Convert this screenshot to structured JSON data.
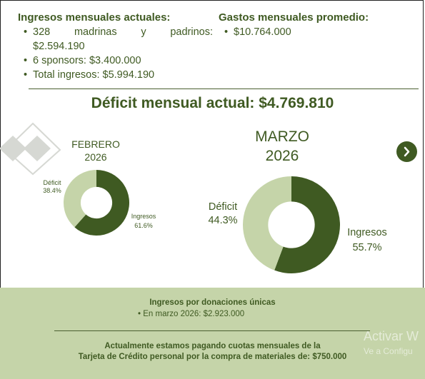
{
  "ingresos": {
    "title": "Ingresos mensuales actuales:",
    "item1_a": "328",
    "item1_b": "madrinas",
    "item1_c": "y",
    "item1_d": "padrinos:",
    "item1_e": "$2.594.190",
    "item2": "6 sponsors: $3.400.000",
    "item3": "Total ingresos: $5.994.190"
  },
  "gastos": {
    "title": "Gastos mensuales promedio:",
    "item1": "$10.764.000"
  },
  "deficit_title": "Déficit mensual actual: $4.769.810",
  "colors": {
    "dark_green": "#3f5a22",
    "light_green": "#c5d4a9",
    "gray_diamond": "#d6d8d3"
  },
  "chart_data": [
    {
      "type": "pie",
      "title_line1": "FEBRERO",
      "title_line2": "2026",
      "slices": [
        {
          "label": "Ingresos",
          "value": 61.6,
          "display": "61.6%",
          "color": "#3f5a22"
        },
        {
          "label": "Déficit",
          "value": 38.4,
          "display": "38.4%",
          "color": "#c5d4a9"
        }
      ]
    },
    {
      "type": "pie",
      "title_line1": "MARZO",
      "title_line2": "2026",
      "slices": [
        {
          "label": "Ingresos",
          "value": 55.7,
          "display": "55.7%",
          "color": "#3f5a22"
        },
        {
          "label": "Déficit",
          "value": 44.3,
          "display": "44.3%",
          "color": "#c5d4a9"
        }
      ]
    }
  ],
  "next_icon": "chevron-right-icon",
  "footer": {
    "title": "Ingresos por donaciones únicas",
    "bullet": "En marzo 2026: $2.923.000",
    "note_line1": "Actualmente estamos pagando cuotas mensuales de la",
    "note_line2": "Tarjeta de Crédito personal por la compra de materiales de: $750.000",
    "watermark_line1": "Activar W",
    "watermark_line2": "Ve a Configu"
  }
}
